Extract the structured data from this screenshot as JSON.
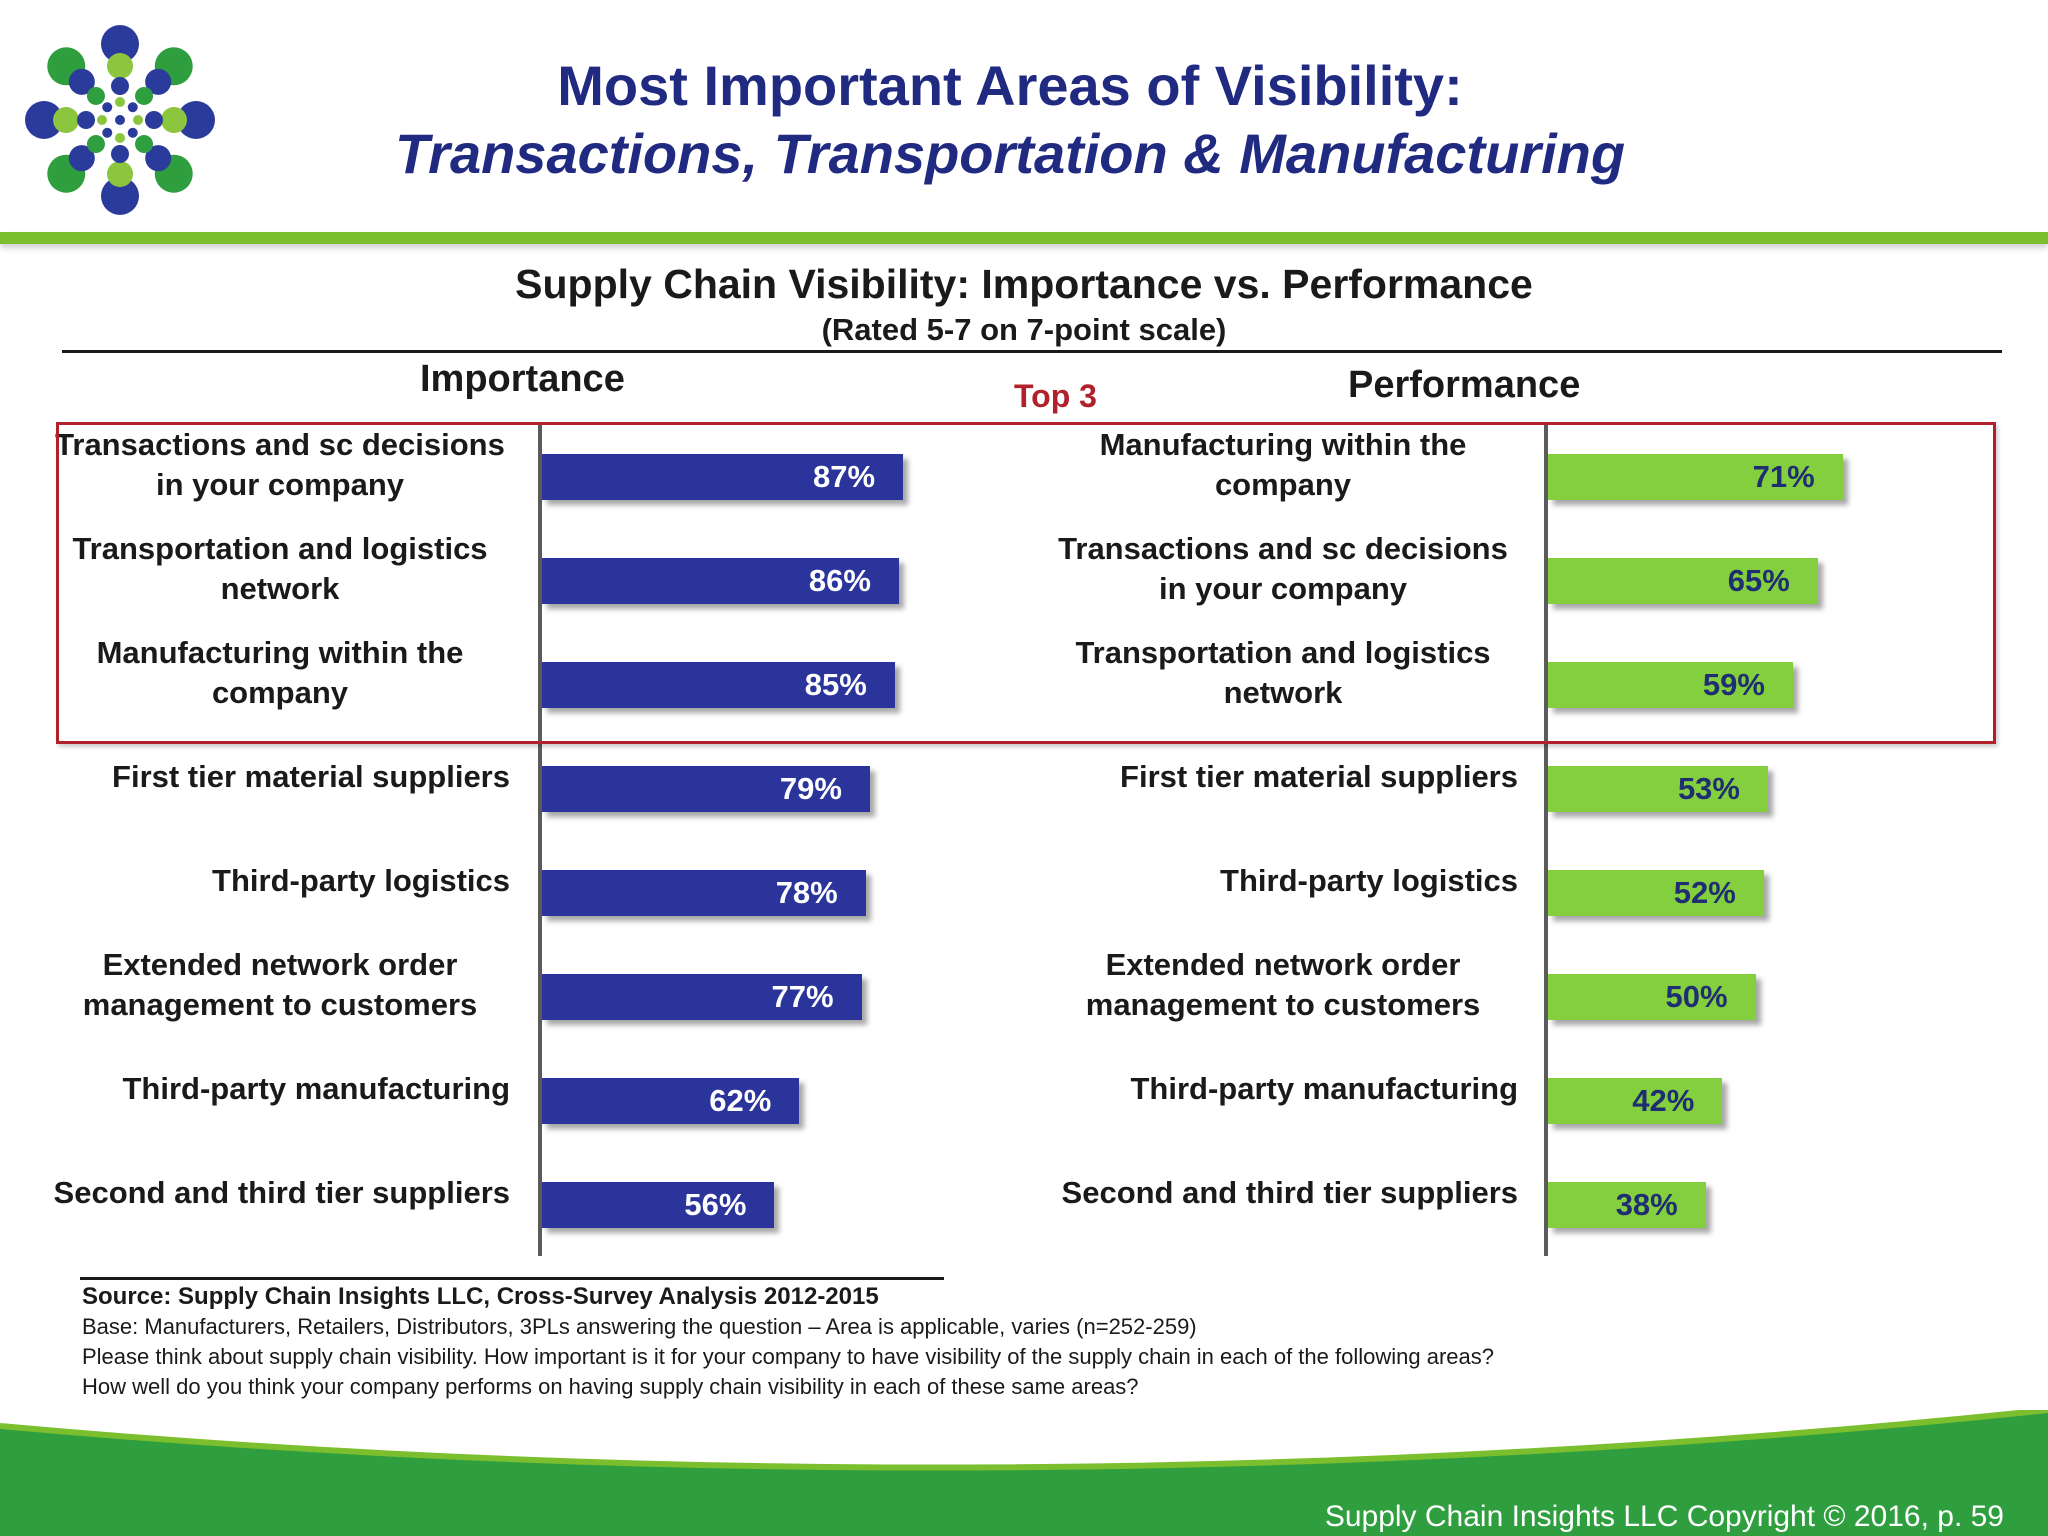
{
  "slide": {
    "title_line1": "Most Important Areas of Visibility:",
    "title_line2": "Transactions, Transportation & Manufacturing",
    "copyright": "Supply Chain Insights LLC Copyright © 2016, p. 59"
  },
  "colors": {
    "title": "#202a80",
    "importance_bar": "#2b349a",
    "performance_bar": "#84cf3d",
    "highlight_box": "#b0212c",
    "brand_green": "#2e9e3e",
    "brand_blue": "#2a3b9c"
  },
  "chart_data": {
    "type": "bar",
    "title": "Supply Chain Visibility:  Importance vs. Performance",
    "subtitle": "(Rated 5-7 on 7-point scale)",
    "highlight_label": "Top 3",
    "highlight_rows": 3,
    "panels": [
      {
        "name": "Importance",
        "categories": [
          "Transactions and sc decisions in your company",
          "Transportation and logistics network",
          "Manufacturing within the company",
          "First tier material suppliers",
          "Third-party logistics",
          "Extended network order management to customers",
          "Third-party manufacturing",
          "Second and third tier suppliers"
        ],
        "values": [
          87,
          86,
          85,
          79,
          78,
          77,
          62,
          56
        ],
        "value_labels": [
          "87%",
          "86%",
          "85%",
          "79%",
          "78%",
          "77%",
          "62%",
          "56%"
        ]
      },
      {
        "name": "Performance",
        "categories": [
          "Manufacturing within the company",
          "Transactions and sc decisions in your company",
          "Transportation and logistics network",
          "First tier material suppliers",
          "Third-party logistics",
          "Extended network order management to customers",
          "Third-party manufacturing",
          "Second and third tier suppliers"
        ],
        "values": [
          71,
          65,
          59,
          53,
          52,
          50,
          42,
          38
        ],
        "value_labels": [
          "71%",
          "65%",
          "59%",
          "53%",
          "52%",
          "50%",
          "42%",
          "38%"
        ]
      }
    ],
    "xlim": [
      0,
      100
    ]
  },
  "source": {
    "line1": "Source:  Supply Chain Insights LLC, Cross-Survey Analysis 2012-2015",
    "line2": "Base:  Manufacturers, Retailers, Distributors, 3PLs answering the question – Area is applicable, varies (n=252-259)",
    "line3": "Please think about supply chain visibility. How important is it for your company to have visibility of the supply chain in each of the following areas?",
    "line4": "How well do you think your company performs on having supply chain visibility in each of these same areas?"
  }
}
